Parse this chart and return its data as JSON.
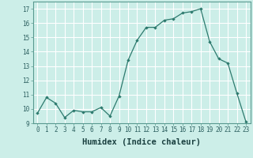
{
  "x": [
    0,
    1,
    2,
    3,
    4,
    5,
    6,
    7,
    8,
    9,
    10,
    11,
    12,
    13,
    14,
    15,
    16,
    17,
    18,
    19,
    20,
    21,
    22,
    23
  ],
  "y": [
    9.7,
    10.8,
    10.4,
    9.4,
    9.9,
    9.8,
    9.8,
    10.1,
    9.5,
    10.9,
    13.4,
    14.8,
    15.7,
    15.7,
    16.2,
    16.3,
    16.7,
    16.8,
    17.0,
    14.7,
    13.5,
    13.2,
    11.1,
    9.1
  ],
  "line_color": "#2d7a6e",
  "marker": "D",
  "marker_size": 2.2,
  "bg_color": "#cceee8",
  "grid_color": "#ffffff",
  "xlabel": "Humidex (Indice chaleur)",
  "ylim": [
    9,
    17.5
  ],
  "xlim": [
    -0.5,
    23.5
  ],
  "yticks": [
    9,
    10,
    11,
    12,
    13,
    14,
    15,
    16,
    17
  ],
  "xticks": [
    0,
    1,
    2,
    3,
    4,
    5,
    6,
    7,
    8,
    9,
    10,
    11,
    12,
    13,
    14,
    15,
    16,
    17,
    18,
    19,
    20,
    21,
    22,
    23
  ],
  "tick_fontsize": 5.5,
  "label_fontsize": 7.5
}
